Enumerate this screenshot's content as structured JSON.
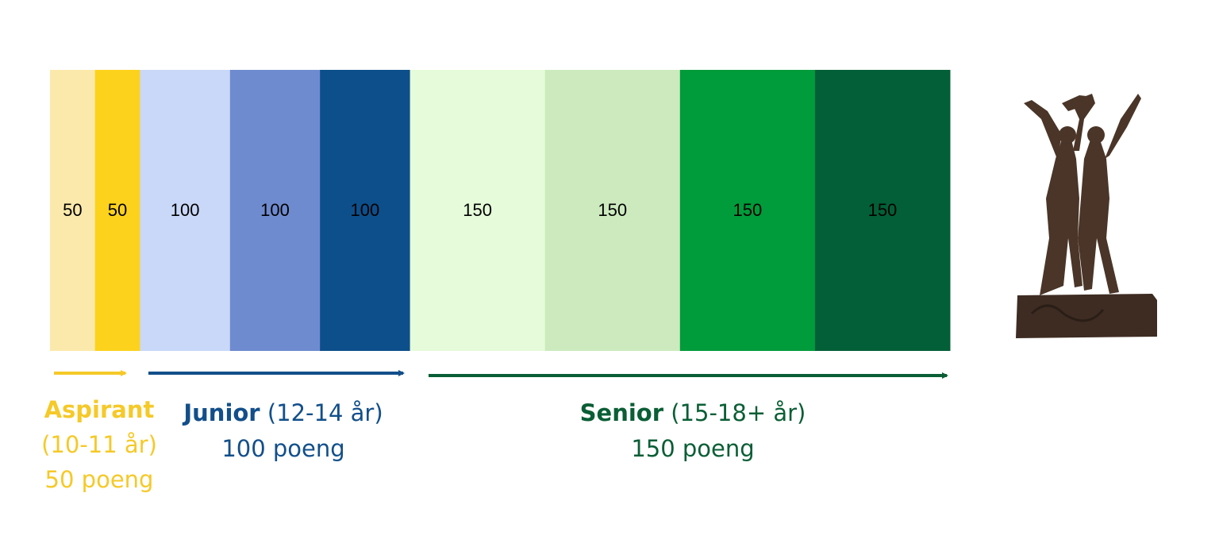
{
  "segments": [
    {
      "value": 50,
      "color": "#fbe9ac"
    },
    {
      "value": 50,
      "color": "#fcd21c"
    },
    {
      "value": 100,
      "color": "#c9d8f8"
    },
    {
      "value": 100,
      "color": "#6f8bcf"
    },
    {
      "value": 100,
      "color": "#0d4f8b"
    },
    {
      "value": 150,
      "color": "#e5fbd9"
    },
    {
      "value": 150,
      "color": "#cceabe"
    },
    {
      "value": 150,
      "color": "#009b3a"
    },
    {
      "value": 150,
      "color": "#035f37"
    }
  ],
  "groups": [
    {
      "name": "Aspirant",
      "detail": "(10-11 år)",
      "points": "50 poeng",
      "color": "#f5c928"
    },
    {
      "name": "Junior",
      "detail": "(12-14 år)",
      "points": "100 poeng",
      "color": "#124f8a"
    },
    {
      "name": "Senior",
      "detail": "(15-18+ år)",
      "points": "150 poeng",
      "color": "#0a5e35"
    }
  ]
}
